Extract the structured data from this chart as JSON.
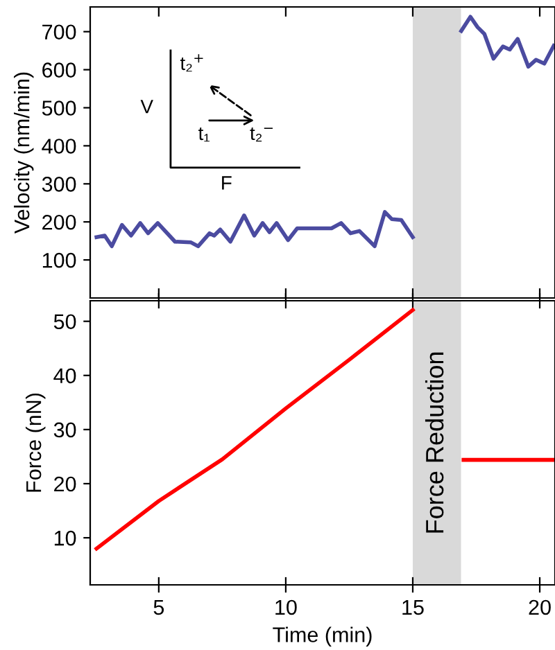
{
  "chart_data": [
    {
      "type": "line",
      "ylabel": "Velocity (nm/min)",
      "xlim": [
        2.3,
        20.6
      ],
      "xticks": [
        5,
        10,
        15,
        20
      ],
      "ylim": [
        0,
        765
      ],
      "yticks": [
        100,
        200,
        300,
        400,
        500,
        600,
        700
      ],
      "tick_labels": "y",
      "grid": false,
      "legend": false,
      "series": [
        {
          "color": "#4b4ba0",
          "x": [
            2.55,
            2.87,
            3.15,
            3.55,
            3.91,
            4.27,
            4.58,
            4.96,
            5.64,
            6.27,
            6.55,
            7.0,
            7.18,
            7.42,
            7.82,
            8.36,
            8.76,
            9.09,
            9.36,
            9.64,
            10.09,
            10.45,
            11.8,
            12.18,
            12.55,
            12.9,
            13.5,
            13.9,
            14.18,
            14.55,
            15.0
          ],
          "values": [
            160,
            164,
            136,
            192,
            164,
            197,
            170,
            197,
            148,
            146,
            136,
            170,
            164,
            180,
            148,
            217,
            164,
            197,
            173,
            197,
            152,
            183,
            183,
            197,
            170,
            176,
            136,
            226,
            207,
            205,
            160
          ]
        },
        {
          "color": "#4b4ba0",
          "x": [
            16.91,
            17.27,
            17.55,
            17.82,
            18.18,
            18.55,
            18.82,
            19.13,
            19.55,
            19.85,
            20.18,
            20.55
          ],
          "values": [
            702,
            739,
            712,
            694,
            629,
            661,
            653,
            681,
            608,
            626,
            616,
            663
          ]
        }
      ],
      "bands": [
        {
          "axis": "x",
          "from": 15,
          "to": 16.9,
          "color": "#d9d9d9"
        }
      ],
      "annotations": [
        "V",
        "F",
        "t₁",
        "t₂$^{+}$",
        "t₂$^{−}$"
      ]
    },
    {
      "type": "line",
      "xlabel": "Time (min)",
      "ylabel": "Force (nN)",
      "xlim": [
        2.3,
        20.6
      ],
      "xticks": [
        5,
        10,
        15,
        20
      ],
      "ylim": [
        1.3,
        53.8
      ],
      "yticks": [
        10,
        20,
        30,
        40,
        50
      ],
      "grid": false,
      "legend": false,
      "series": [
        {
          "color": "#ff0000",
          "x": [
            2.55,
            5,
            7.5,
            10,
            12.5,
            15
          ],
          "values": [
            8.0,
            16.8,
            24.5,
            33.9,
            42.9,
            52.1
          ]
        },
        {
          "color": "#ff0000",
          "x": [
            17.0,
            20.6
          ],
          "values": [
            24.4,
            24.4
          ]
        }
      ],
      "bands": [
        {
          "axis": "x",
          "from": 15,
          "to": 16.9,
          "color": "#d9d9d9",
          "label": "Force Reduction"
        }
      ]
    }
  ]
}
